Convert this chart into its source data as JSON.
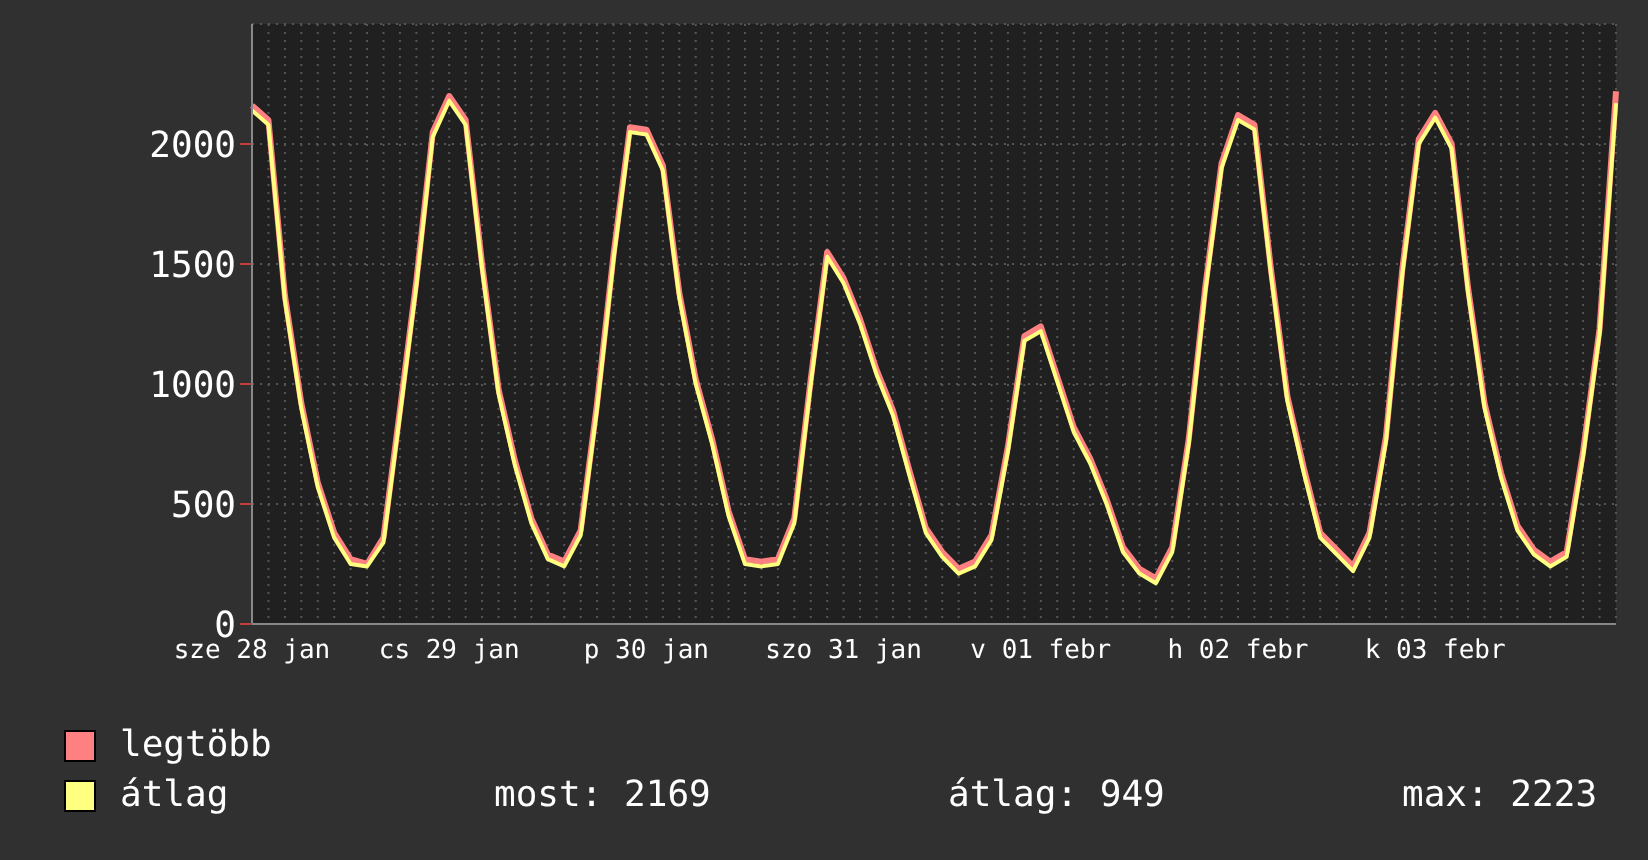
{
  "chart_data": {
    "type": "line",
    "categories": [
      "sze 28 jan",
      null,
      null,
      null,
      null,
      null,
      null,
      null,
      null,
      null,
      null,
      null,
      "cs 29 jan",
      null,
      null,
      null,
      null,
      null,
      null,
      null,
      null,
      null,
      null,
      null,
      "p 30 jan",
      null,
      null,
      null,
      null,
      null,
      null,
      null,
      null,
      null,
      null,
      null,
      "szo 31 jan",
      null,
      null,
      null,
      null,
      null,
      null,
      null,
      null,
      null,
      null,
      null,
      "v 01 febr",
      null,
      null,
      null,
      null,
      null,
      null,
      null,
      null,
      null,
      null,
      null,
      "h 02 febr",
      null,
      null,
      null,
      null,
      null,
      null,
      null,
      null,
      null,
      null,
      null,
      "k 03 febr",
      null,
      null,
      null,
      null,
      null,
      null,
      null,
      null,
      null,
      null,
      null
    ],
    "series": [
      {
        "name": "legtöbb",
        "color": "#ff8080",
        "values": [
          2160,
          2100,
          1370,
          920,
          590,
          380,
          270,
          250,
          360,
          890,
          1430,
          2050,
          2200,
          2100,
          1500,
          980,
          680,
          440,
          290,
          260,
          390,
          920,
          1540,
          2070,
          2060,
          1910,
          1380,
          1020,
          770,
          470,
          270,
          260,
          270,
          440,
          1020,
          1550,
          1440,
          1270,
          1060,
          890,
          640,
          400,
          300,
          230,
          260,
          370,
          740,
          1200,
          1240,
          1030,
          820,
          690,
          520,
          320,
          230,
          190,
          320,
          770,
          1400,
          1920,
          2120,
          2080,
          1480,
          950,
          650,
          380,
          310,
          240,
          380,
          780,
          1480,
          2020,
          2130,
          2000,
          1400,
          920,
          630,
          410,
          310,
          260,
          300,
          720,
          1230,
          2220
        ]
      },
      {
        "name": "átlag",
        "color": "#ffff80",
        "values": [
          2140,
          2080,
          1350,
          900,
          570,
          360,
          250,
          240,
          340,
          870,
          1410,
          2030,
          2180,
          2080,
          1480,
          960,
          660,
          420,
          270,
          240,
          370,
          900,
          1520,
          2050,
          2040,
          1890,
          1360,
          1000,
          750,
          450,
          250,
          240,
          250,
          420,
          1000,
          1530,
          1420,
          1250,
          1040,
          870,
          620,
          380,
          280,
          210,
          240,
          350,
          720,
          1180,
          1220,
          1010,
          800,
          670,
          500,
          300,
          210,
          170,
          300,
          750,
          1380,
          1900,
          2100,
          2060,
          1460,
          930,
          630,
          360,
          290,
          220,
          360,
          760,
          1460,
          2000,
          2110,
          1980,
          1380,
          900,
          610,
          390,
          290,
          240,
          280,
          700,
          1210,
          2170
        ]
      }
    ],
    "ylim": [
      0,
      2500
    ],
    "yticks": [
      0,
      500,
      1000,
      1500,
      2000
    ],
    "grid": true,
    "legend": "bottom",
    "annotations": [
      "most: 2169",
      "átlag: 949",
      "max: 2223"
    ]
  }
}
